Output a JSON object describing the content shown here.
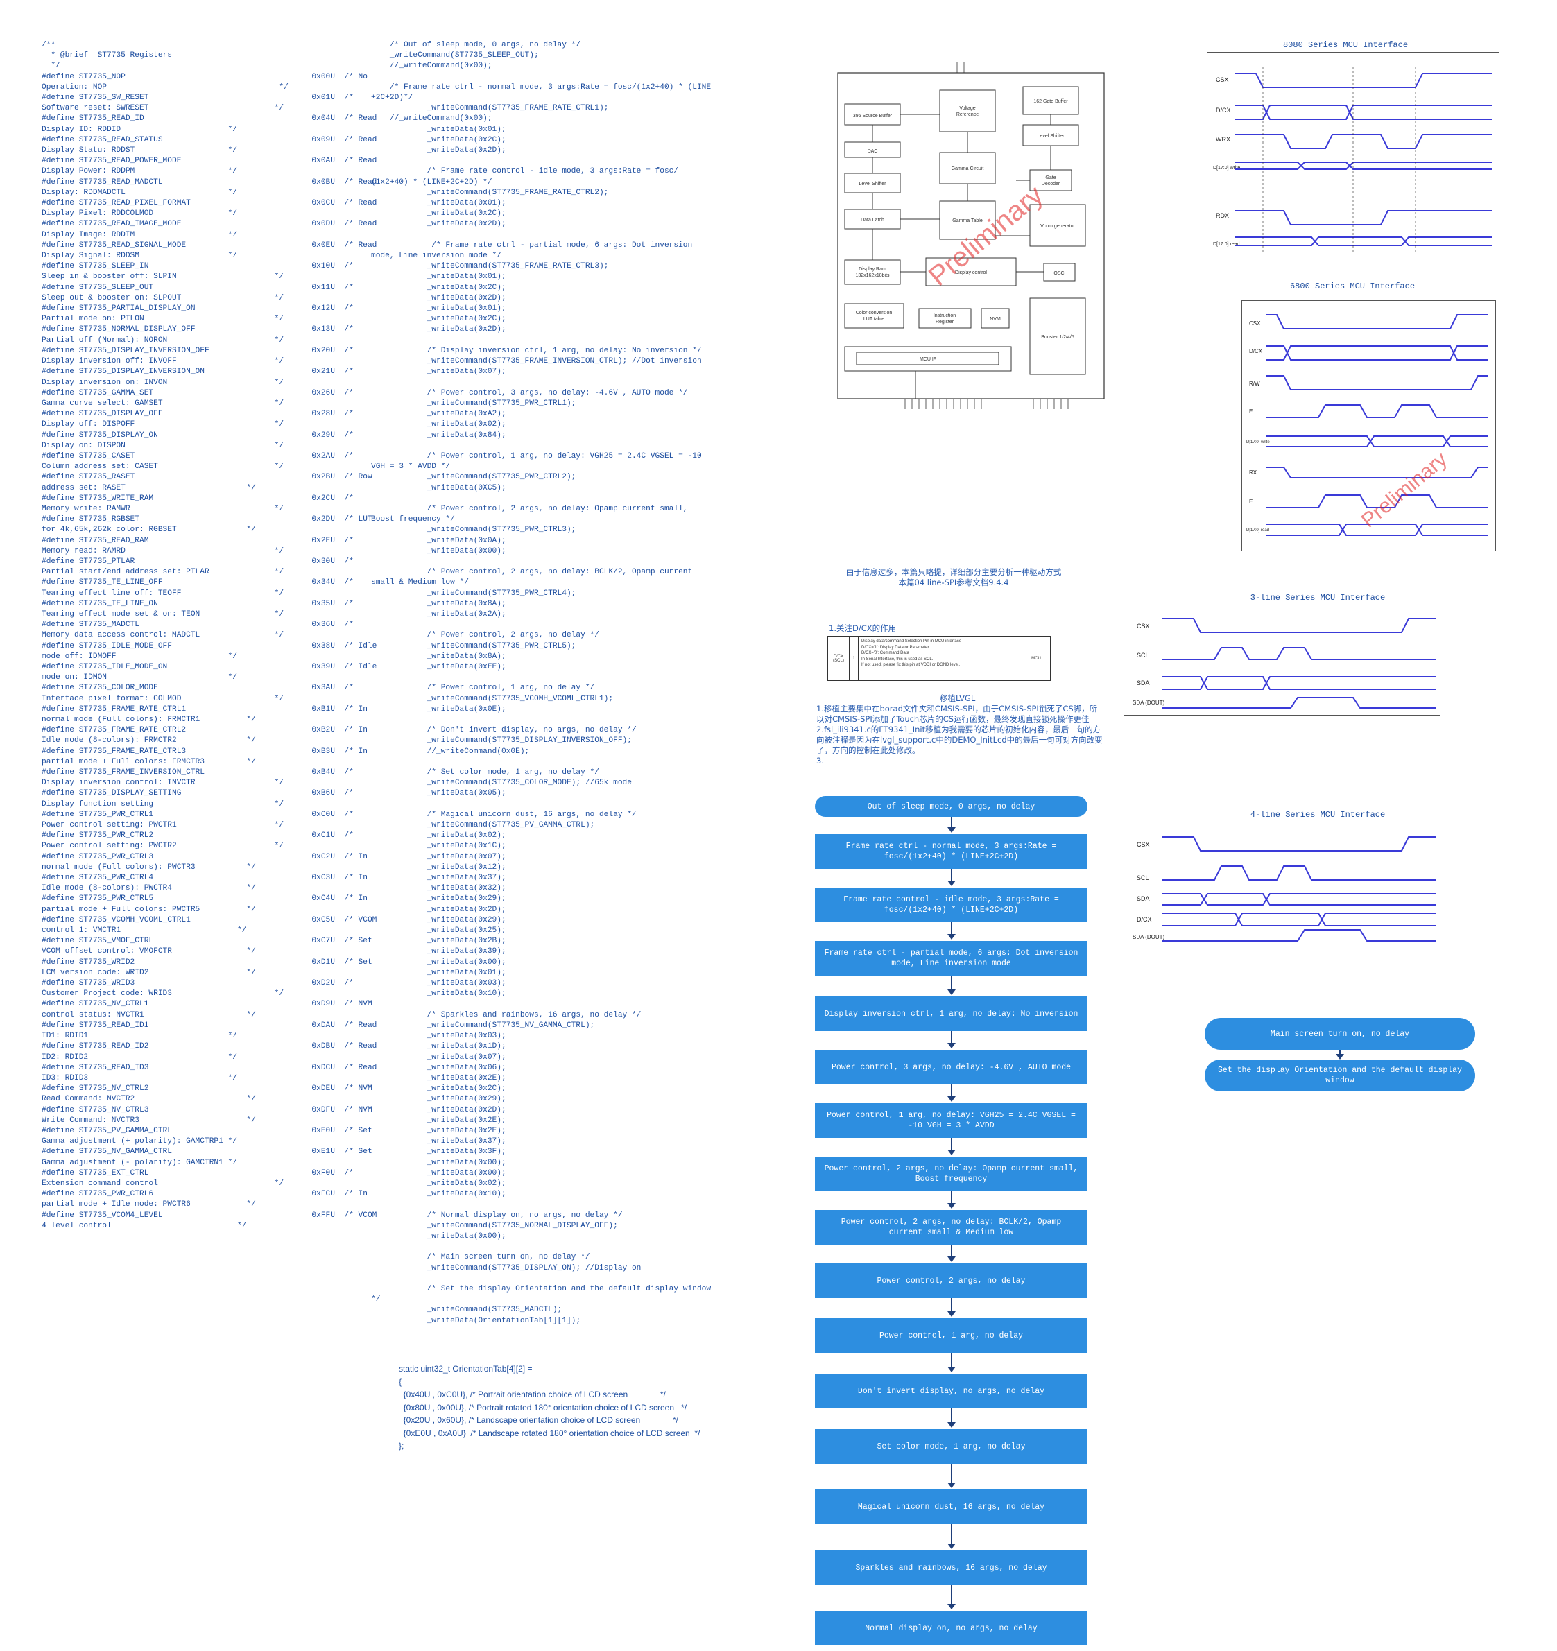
{
  "register_code": "/**\n  * @brief  ST7735 Registers\n  */\n#define ST7735_NOP                                        0x00U  /* No\nOperation: NOP                                     */\n#define ST7735_SW_RESET                                   0x01U  /*\nSoftware reset: SWRESET                           */\n#define ST7735_READ_ID                                    0x04U  /* Read\nDisplay ID: RDDID                       */\n#define ST7735_READ_STATUS                                0x09U  /* Read\nDisplay Statu: RDDST                    */\n#define ST7735_READ_POWER_MODE                            0x0AU  /* Read\nDisplay Power: RDDPM                    */\n#define ST7735_READ_MADCTL                                0x0BU  /* Read\nDisplay: RDDMADCTL                      */\n#define ST7735_READ_PIXEL_FORMAT                          0x0CU  /* Read\nDisplay Pixel: RDDCOLMOD                */\n#define ST7735_READ_IMAGE_MODE                            0x0DU  /* Read\nDisplay Image: RDDIM                    */\n#define ST7735_READ_SIGNAL_MODE                           0x0EU  /* Read\nDisplay Signal: RDDSM                   */\n#define ST7735_SLEEP_IN                                   0x10U  /*\nSleep in & booster off: SLPIN                     */\n#define ST7735_SLEEP_OUT                                  0x11U  /*\nSleep out & booster on: SLPOUT                    */\n#define ST7735_PARTIAL_DISPLAY_ON                         0x12U  /*\nPartial mode on: PTLON                            */\n#define ST7735_NORMAL_DISPLAY_OFF                         0x13U  /*\nPartial off (Normal): NORON                       */\n#define ST7735_DISPLAY_INVERSION_OFF                      0x20U  /*\nDisplay inversion off: INVOFF                     */\n#define ST7735_DISPLAY_INVERSION_ON                       0x21U  /*\nDisplay inversion on: INVON                       */\n#define ST7735_GAMMA_SET                                  0x26U  /*\nGamma curve select: GAMSET                        */\n#define ST7735_DISPLAY_OFF                                0x28U  /*\nDisplay off: DISPOFF                              */\n#define ST7735_DISPLAY_ON                                 0x29U  /*\nDisplay on: DISPON                                */\n#define ST7735_CASET                                      0x2AU  /*\nColumn address set: CASET                         */\n#define ST7735_RASET                                      0x2BU  /* Row\naddress set: RASET                          */\n#define ST7735_WRITE_RAM                                  0x2CU  /*\nMemory write: RAMWR                               */\n#define ST7735_RGBSET                                     0x2DU  /* LUT\nfor 4k,65k,262k color: RGBSET               */\n#define ST7735_READ_RAM                                   0x2EU  /*\nMemory read: RAMRD                                */\n#define ST7735_PTLAR                                      0x30U  /*\nPartial start/end address set: PTLAR              */\n#define ST7735_TE_LINE_OFF                                0x34U  /*\nTearing effect line off: TEOFF                    */\n#define ST7735_TE_LINE_ON                                 0x35U  /*\nTearing effect mode set & on: TEON                */\n#define ST7735_MADCTL                                     0x36U  /*\nMemory data access control: MADCTL                */\n#define ST7735_IDLE_MODE_OFF                              0x38U  /* Idle\nmode off: IDMOFF                        */\n#define ST7735_IDLE_MODE_ON                               0x39U  /* Idle\nmode on: IDMON                          */\n#define ST7735_COLOR_MODE                                 0x3AU  /*\nInterface pixel format: COLMOD                    */\n#define ST7735_FRAME_RATE_CTRL1                           0xB1U  /* In\nnormal mode (Full colors): FRMCTR1          */\n#define ST7735_FRAME_RATE_CTRL2                           0xB2U  /* In\nIdle mode (8-colors): FRMCTR2               */\n#define ST7735_FRAME_RATE_CTRL3                           0xB3U  /* In\npartial mode + Full colors: FRMCTR3         */\n#define ST7735_FRAME_INVERSION_CTRL                       0xB4U  /*\nDisplay inversion control: INVCTR                 */\n#define ST7735_DISPLAY_SETTING                            0xB6U  /*\nDisplay function setting                          */\n#define ST7735_PWR_CTRL1                                  0xC0U  /*\nPower control setting: PWCTR1                     */\n#define ST7735_PWR_CTRL2                                  0xC1U  /*\nPower control setting: PWCTR2                     */\n#define ST7735_PWR_CTRL3                                  0xC2U  /* In\nnormal mode (Full colors): PWCTR3           */\n#define ST7735_PWR_CTRL4                                  0xC3U  /* In\nIdle mode (8-colors): PWCTR4                */\n#define ST7735_PWR_CTRL5                                  0xC4U  /* In\npartial mode + Full colors: PWCTR5          */\n#define ST7735_VCOMH_VCOML_CTRL1                          0xC5U  /* VCOM\ncontrol 1: VMCTR1                         */\n#define ST7735_VMOF_CTRL                                  0xC7U  /* Set\nVCOM offset control: VMOFCTR                */\n#define ST7735_WRID2                                      0xD1U  /* Set\nLCM version code: WRID2                     */\n#define ST7735_WRID3                                      0xD2U  /*\nCustomer Project code: WRID3                      */\n#define ST7735_NV_CTRL1                                   0xD9U  /* NVM\ncontrol status: NVCTR1                      */\n#define ST7735_READ_ID1                                   0xDAU  /* Read\nID1: RDID1                              */\n#define ST7735_READ_ID2                                   0xDBU  /* Read\nID2: RDID2                              */\n#define ST7735_READ_ID3                                   0xDCU  /* Read\nID3: RDID3                              */\n#define ST7735_NV_CTRL2                                   0xDEU  /* NVM\nRead Command: NVCTR2                        */\n#define ST7735_NV_CTRL3                                   0xDFU  /* NVM\nWrite Command: NVCTR3                       */\n#define ST7735_PV_GAMMA_CTRL                              0xE0U  /* Set\nGamma adjustment (+ polarity): GAMCTRP1 */\n#define ST7735_NV_GAMMA_CTRL                              0xE1U  /* Set\nGamma adjustment (- polarity): GAMCTRN1 */\n#define ST7735_EXT_CTRL                                   0xF0U  /*\nExtension command control                         */\n#define ST7735_PWR_CTRL6                                  0xFCU  /* In\npartial mode + Idle mode: PWCTR6            */\n#define ST7735_VCOM4_LEVEL                                0xFFU  /* VCOM\n4 level control                           */",
  "init_code": "    /* Out of sleep mode, 0 args, no delay */\n    _writeCommand(ST7735_SLEEP_OUT);\n    //_writeCommand(0x00);\n\n    /* Frame rate ctrl - normal mode, 3 args:Rate = fosc/(1x2+40) * (LINE\n+2C+2D)*/\n            _writeCommand(ST7735_FRAME_RATE_CTRL1);\n    //_writeCommand(0x00);\n            _writeData(0x01);\n            _writeData(0x2C);\n            _writeData(0x2D);\n\n            /* Frame rate control - idle mode, 3 args:Rate = fosc/\n(1x2+40) * (LINE+2C+2D) */\n            _writeCommand(ST7735_FRAME_RATE_CTRL2);\n            _writeData(0x01);\n            _writeData(0x2C);\n            _writeData(0x2D);\n\n             /* Frame rate ctrl - partial mode, 6 args: Dot inversion\nmode, Line inversion mode */\n            _writeCommand(ST7735_FRAME_RATE_CTRL3);\n            _writeData(0x01);\n            _writeData(0x2C);\n            _writeData(0x2D);\n            _writeData(0x01);\n            _writeData(0x2C);\n            _writeData(0x2D);\n\n            /* Display inversion ctrl, 1 arg, no delay: No inversion */\n            _writeCommand(ST7735_FRAME_INVERSION_CTRL); //Dot inversion\n            _writeData(0x07);\n\n            /* Power control, 3 args, no delay: -4.6V , AUTO mode */\n            _writeCommand(ST7735_PWR_CTRL1);\n            _writeData(0xA2);\n            _writeData(0x02);\n            _writeData(0x84);\n\n            /* Power control, 1 arg, no delay: VGH25 = 2.4C VGSEL = -10\nVGH = 3 * AVDD */\n            _writeCommand(ST7735_PWR_CTRL2);\n            _writeData(0XC5);\n\n            /* Power control, 2 args, no delay: Opamp current small,\nBoost frequency */\n            _writeCommand(ST7735_PWR_CTRL3);\n            _writeData(0x0A);\n            _writeData(0x00);\n\n            /* Power control, 2 args, no delay: BCLK/2, Opamp current\nsmall & Medium low */\n            _writeCommand(ST7735_PWR_CTRL4);\n            _writeData(0x8A);\n            _writeData(0x2A);\n\n            /* Power control, 2 args, no delay */\n            _writeCommand(ST7735_PWR_CTRL5);\n            _writeData(0x8A);\n            _writeData(0xEE);\n\n            /* Power control, 1 arg, no delay */\n            _writeCommand(ST7735_VCOMH_VCOML_CTRL1);\n            _writeData(0x0E);\n\n            /* Don't invert display, no args, no delay */\n            _writeCommand(ST7735_DISPLAY_INVERSION_OFF);\n            //_writeCommand(0x0E);\n\n            /* Set color mode, 1 arg, no delay */\n            _writeCommand(ST7735_COLOR_MODE); //65k mode\n            _writeData(0x05);\n\n            /* Magical unicorn dust, 16 args, no delay */\n            _writeCommand(ST7735_PV_GAMMA_CTRL);\n            _writeData(0x02);\n            _writeData(0x1C);\n            _writeData(0x07);\n            _writeData(0x12);\n            _writeData(0x37);\n            _writeData(0x32);\n            _writeData(0x29);\n            _writeData(0x2D);\n            _writeData(0x29);\n            _writeData(0x25);\n            _writeData(0x2B);\n            _writeData(0x39);\n            _writeData(0x00);\n            _writeData(0x01);\n            _writeData(0x03);\n            _writeData(0x10);\n\n            /* Sparkles and rainbows, 16 args, no delay */\n            _writeCommand(ST7735_NV_GAMMA_CTRL);\n            _writeData(0x03);\n            _writeData(0x1D);\n            _writeData(0x07);\n            _writeData(0x06);\n            _writeData(0x2E);\n            _writeData(0x2C);\n            _writeData(0x29);\n            _writeData(0x2D);\n            _writeData(0x2E);\n            _writeData(0x2E);\n            _writeData(0x37);\n            _writeData(0x3F);\n            _writeData(0x00);\n            _writeData(0x00);\n            _writeData(0x02);\n            _writeData(0x10);\n\n            /* Normal display on, no args, no delay */\n            _writeCommand(ST7735_NORMAL_DISPLAY_OFF);\n            _writeData(0x00);\n\n            /* Main screen turn on, no delay */\n            _writeCommand(ST7735_DISPLAY_ON); //Display on\n\n            /* Set the display Orientation and the default display window\n*/\n            _writeCommand(ST7735_MADCTL);\n            _writeData(OrientationTab[1][1]);",
  "orientation_code": "static uint32_t OrientationTab[4][2] =\n{\n  {0x40U , 0xC0U}, /* Portrait orientation choice of LCD screen              */\n  {0x80U , 0x00U}, /* Portrait rotated 180° orientation choice of LCD screen   */\n  {0x20U , 0x60U}, /* Landscape orientation choice of LCD screen              */\n  {0xE0U , 0xA0U}  /* Landscape rotated 180° orientation choice of LCD screen  */\n};",
  "notes": {
    "intro_line1": "由于信息过多，本篇只略提，详细部分主要分析一种驱动方式",
    "intro_line2": "本篇04 line-SPI参考文档9.4.4",
    "dcx_title": "1.关注D/CX的作用",
    "lvgl_title": "移植LVGL",
    "lvgl_line1": "1.移植主要集中在borad文件夹和CMSIS-SPI，由于CMSIS-SPI锁死了CS脚，所以对CMSIS-SPI添加了Touch芯片的CS运行函数，最终发现直接锁死操作更佳",
    "lvgl_line2": "2.fsl_ili9341.c的FT9341_Init移植为我需要的芯片的初始化内容，最后一句的方向被注释是因为在lvgl_support.c中的DEMO_InitLcd中的最后一句可对方向改变了，方向的控制在此处修改。",
    "lvgl_line3": "3."
  },
  "dcx_table": {
    "col1": "D/CX\n(SCL)",
    "col2": "1",
    "desc_line1": "Display data/command Selection Pin in MCU interface",
    "desc_line2": "D/CX='1': Display Data or Parameter",
    "desc_line3": "D/CX='0': Command Data",
    "desc_line4": "In Serial Interface, this is used as SCL.",
    "desc_line5": "If not used, please fix this pin at VDDI or DGND level.",
    "col4": "MCU"
  },
  "block_diagram": {
    "watermark": "Preliminary",
    "blocks": [
      "396 Source Buffer",
      "DAC",
      "Level Shifter",
      "Data Latch",
      "Voltage Reference",
      "Gamma Circuit",
      "Gamma Table",
      "162 Gate Buffer",
      "Level Shifter",
      "Gate Decoder",
      "Vcom generator",
      "Display Ram 132x162x18bits",
      "Display control",
      "OSC",
      "Color conversion LUT table",
      "Instruction Register",
      "NVM",
      "Booster 1/2/4/5",
      "MCU IF"
    ]
  },
  "timing_diagrams": [
    {
      "title": "8080 Series MCU Interface",
      "signals": [
        "CSX",
        "D/CX",
        "WRX",
        "D[17:0] write",
        "RDX",
        "D[17:0] read"
      ]
    },
    {
      "title": "6800 Series MCU Interface",
      "signals": [
        "CSX",
        "D/CX",
        "R/W",
        "E",
        "D[17:0] write",
        "RX",
        "E",
        "D[17:0] read"
      ]
    },
    {
      "title": "3-line Series MCU Interface",
      "signals": [
        "CSX",
        "SCL",
        "SDA",
        "SDA (DOUT)"
      ]
    },
    {
      "title": "4-line Series MCU Interface",
      "signals": [
        "CSX",
        "SCL",
        "SDA",
        "D/CX",
        "SDA (DOUT)"
      ]
    }
  ],
  "flowchart_steps": [
    "Out of sleep mode, 0 args, no delay",
    "Frame rate ctrl - normal mode, 3 args:Rate = fosc/(1x2+40) * (LINE+2C+2D)",
    "Frame rate control - idle mode, 3 args:Rate = fosc/(1x2+40) * (LINE+2C+2D)",
    "Frame rate ctrl - partial mode, 6 args: Dot inversion mode, Line inversion mode",
    "Display inversion ctrl, 1 arg, no delay: No inversion",
    "Power control, 3 args, no delay: -4.6V , AUTO mode",
    "Power control, 1 arg, no delay: VGH25 = 2.4C VGSEL = -10 VGH = 3 * AVDD",
    "Power control, 2 args, no delay: Opamp current small, Boost frequency",
    "Power control, 2 args, no delay: BCLK/2, Opamp current small & Medium low",
    "Power control, 2 args, no delay",
    "Power control, 1 arg, no delay",
    "Don't invert display, no args, no delay",
    "Set color mode, 1 arg, no delay",
    "Magical unicorn dust, 16 args, no delay",
    "Sparkles and rainbows, 16 args, no delay",
    "Normal display on, no args, no delay"
  ],
  "flowchart_tail": [
    "Main screen turn on, no delay",
    "Set the display Orientation and the default display window"
  ],
  "colors": {
    "flow_box": "#2d8ee0",
    "text": "#1f4fa0",
    "signal": "#3a3ad8",
    "watermark": "#e02020"
  }
}
